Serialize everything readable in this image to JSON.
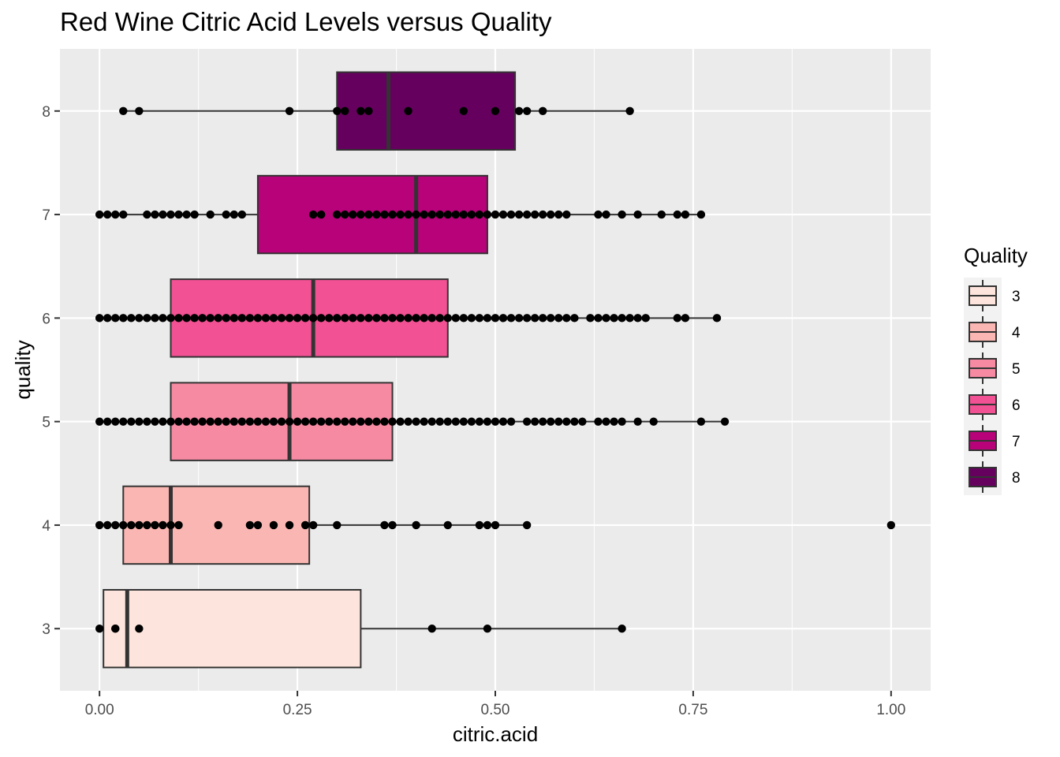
{
  "chart_data": {
    "type": "boxplot",
    "orientation": "horizontal",
    "title": "Red Wine Citric Acid Levels versus Quality",
    "xlabel": "citric.acid",
    "ylabel": "quality",
    "xlim": [
      -0.05,
      1.05
    ],
    "ylim": [
      2.4,
      8.6
    ],
    "x_ticks": [
      0.0,
      0.25,
      0.5,
      0.75,
      1.0
    ],
    "x_tick_labels": [
      "0.00",
      "0.25",
      "0.50",
      "0.75",
      "1.00"
    ],
    "y_ticks": [
      3,
      4,
      5,
      6,
      7,
      8
    ],
    "y_tick_labels": [
      "3",
      "4",
      "5",
      "6",
      "7",
      "8"
    ],
    "grid": true,
    "legend": {
      "title": "Quality",
      "placement": "right",
      "entries": [
        "3",
        "4",
        "5",
        "6",
        "7",
        "8"
      ]
    },
    "series": [
      {
        "name": "3",
        "color": "#fde4dc",
        "q1": 0.005,
        "median": 0.035,
        "q3": 0.33,
        "whisker_low": 0.0,
        "whisker_high": 0.66,
        "points": [
          0.0,
          0.02,
          0.02,
          0.05,
          0.42,
          0.49,
          0.66
        ]
      },
      {
        "name": "4",
        "color": "#fab6b2",
        "q1": 0.03,
        "median": 0.09,
        "q3": 0.265,
        "whisker_low": 0.0,
        "whisker_high": 0.54,
        "points": [
          0.0,
          0.01,
          0.02,
          0.03,
          0.04,
          0.05,
          0.06,
          0.07,
          0.08,
          0.09,
          0.1,
          0.15,
          0.19,
          0.2,
          0.22,
          0.24,
          0.26,
          0.27,
          0.3,
          0.36,
          0.37,
          0.4,
          0.44,
          0.48,
          0.49,
          0.5,
          0.54,
          1.0
        ]
      },
      {
        "name": "5",
        "color": "#f68aa3",
        "q1": 0.09,
        "median": 0.24,
        "q3": 0.37,
        "whisker_low": 0.0,
        "whisker_high": 0.79,
        "points": [
          0.0,
          0.01,
          0.02,
          0.03,
          0.04,
          0.05,
          0.06,
          0.07,
          0.08,
          0.09,
          0.1,
          0.11,
          0.12,
          0.13,
          0.14,
          0.15,
          0.16,
          0.17,
          0.18,
          0.19,
          0.2,
          0.21,
          0.22,
          0.23,
          0.24,
          0.25,
          0.26,
          0.27,
          0.28,
          0.29,
          0.3,
          0.31,
          0.32,
          0.33,
          0.34,
          0.35,
          0.36,
          0.37,
          0.38,
          0.39,
          0.4,
          0.41,
          0.42,
          0.43,
          0.44,
          0.45,
          0.46,
          0.47,
          0.48,
          0.49,
          0.5,
          0.51,
          0.52,
          0.54,
          0.55,
          0.56,
          0.57,
          0.58,
          0.59,
          0.6,
          0.61,
          0.63,
          0.64,
          0.65,
          0.66,
          0.68,
          0.7,
          0.76,
          0.79
        ]
      },
      {
        "name": "6",
        "color": "#f25193",
        "q1": 0.09,
        "median": 0.27,
        "q3": 0.44,
        "whisker_low": 0.0,
        "whisker_high": 0.78,
        "points": [
          0.0,
          0.01,
          0.02,
          0.03,
          0.04,
          0.05,
          0.06,
          0.07,
          0.08,
          0.09,
          0.1,
          0.11,
          0.12,
          0.13,
          0.14,
          0.15,
          0.16,
          0.17,
          0.18,
          0.19,
          0.2,
          0.21,
          0.22,
          0.23,
          0.24,
          0.25,
          0.26,
          0.27,
          0.28,
          0.29,
          0.3,
          0.31,
          0.32,
          0.33,
          0.34,
          0.35,
          0.36,
          0.37,
          0.38,
          0.39,
          0.4,
          0.41,
          0.42,
          0.43,
          0.44,
          0.45,
          0.46,
          0.47,
          0.48,
          0.49,
          0.5,
          0.51,
          0.52,
          0.53,
          0.54,
          0.55,
          0.56,
          0.57,
          0.58,
          0.59,
          0.6,
          0.62,
          0.63,
          0.64,
          0.65,
          0.66,
          0.67,
          0.68,
          0.69,
          0.73,
          0.74,
          0.78
        ]
      },
      {
        "name": "7",
        "color": "#b70279",
        "q1": 0.2,
        "median": 0.4,
        "q3": 0.49,
        "whisker_low": 0.0,
        "whisker_high": 0.76,
        "points": [
          0.0,
          0.01,
          0.02,
          0.03,
          0.06,
          0.07,
          0.08,
          0.09,
          0.1,
          0.11,
          0.12,
          0.14,
          0.16,
          0.17,
          0.18,
          0.27,
          0.28,
          0.3,
          0.31,
          0.32,
          0.33,
          0.34,
          0.35,
          0.36,
          0.37,
          0.38,
          0.39,
          0.4,
          0.41,
          0.42,
          0.43,
          0.44,
          0.45,
          0.46,
          0.47,
          0.48,
          0.49,
          0.5,
          0.51,
          0.52,
          0.53,
          0.54,
          0.55,
          0.56,
          0.57,
          0.58,
          0.59,
          0.63,
          0.64,
          0.66,
          0.68,
          0.71,
          0.73,
          0.74,
          0.76
        ]
      },
      {
        "name": "8",
        "color": "#66005e",
        "q1": 0.3,
        "median": 0.365,
        "q3": 0.525,
        "whisker_low": 0.03,
        "whisker_high": 0.67,
        "points": [
          0.03,
          0.05,
          0.24,
          0.3,
          0.31,
          0.33,
          0.34,
          0.39,
          0.46,
          0.5,
          0.53,
          0.54,
          0.56,
          0.67
        ]
      }
    ]
  }
}
